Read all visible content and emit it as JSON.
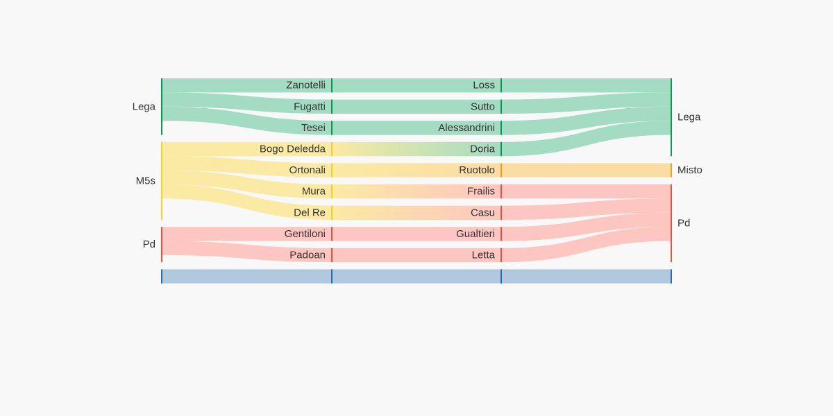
{
  "colors": {
    "lega": "#009e55",
    "m5s": "#f6d21a",
    "pd": "#e8533f",
    "misto": "#f0a50f",
    "other": "#1f6fb5",
    "lega_link": "#a3dcc2",
    "m5s_link": "#fbeaa3",
    "pd_link": "#fdc6c0",
    "misto_link": "#fbdca3",
    "other_link": "#b0c9df",
    "background": "#f8f8f8"
  },
  "diagram": {
    "type": "sankey",
    "columns": [
      {
        "nodes": [
          {
            "id": "c0-lega",
            "label": "Lega",
            "party": "lega"
          },
          {
            "id": "c0-m5s",
            "label": "M5s",
            "party": "m5s"
          },
          {
            "id": "c0-pd",
            "label": "Pd",
            "party": "pd"
          },
          {
            "id": "c0-other",
            "label": "",
            "party": "other"
          }
        ]
      },
      {
        "nodes": [
          {
            "id": "c1-zanotelli",
            "label": "Zanotelli",
            "party": "lega"
          },
          {
            "id": "c1-fugatti",
            "label": "Fugatti",
            "party": "lega"
          },
          {
            "id": "c1-tesei",
            "label": "Tesei",
            "party": "lega"
          },
          {
            "id": "c1-bogo",
            "label": "Bogo Deledda",
            "party": "m5s"
          },
          {
            "id": "c1-ortonali",
            "label": "Ortonali",
            "party": "m5s"
          },
          {
            "id": "c1-mura",
            "label": "Mura",
            "party": "m5s"
          },
          {
            "id": "c1-delre",
            "label": "Del Re",
            "party": "m5s"
          },
          {
            "id": "c1-gentiloni",
            "label": "Gentiloni",
            "party": "pd"
          },
          {
            "id": "c1-padoan",
            "label": "Padoan",
            "party": "pd"
          },
          {
            "id": "c1-other",
            "label": "",
            "party": "other"
          }
        ]
      },
      {
        "nodes": [
          {
            "id": "c2-loss",
            "label": "Loss",
            "party": "lega"
          },
          {
            "id": "c2-sutto",
            "label": "Sutto",
            "party": "lega"
          },
          {
            "id": "c2-alessandrini",
            "label": "Alessandrini",
            "party": "lega"
          },
          {
            "id": "c2-doria",
            "label": "Doria",
            "party": "lega"
          },
          {
            "id": "c2-ruotolo",
            "label": "Ruotolo",
            "party": "misto"
          },
          {
            "id": "c2-frailis",
            "label": "Frailis",
            "party": "pd"
          },
          {
            "id": "c2-casu",
            "label": "Casu",
            "party": "pd"
          },
          {
            "id": "c2-gualtieri",
            "label": "Gualtieri",
            "party": "pd"
          },
          {
            "id": "c2-letta",
            "label": "Letta",
            "party": "pd"
          },
          {
            "id": "c2-other",
            "label": "",
            "party": "other"
          }
        ]
      },
      {
        "nodes": [
          {
            "id": "c3-lega",
            "label": "Lega",
            "party": "lega"
          },
          {
            "id": "c3-misto",
            "label": "Misto",
            "party": "misto"
          },
          {
            "id": "c3-pd",
            "label": "Pd",
            "party": "pd"
          },
          {
            "id": "c3-other",
            "label": "",
            "party": "other"
          }
        ]
      }
    ],
    "links": [
      {
        "source": "c0-lega",
        "target": "c1-zanotelli",
        "value": 1
      },
      {
        "source": "c0-lega",
        "target": "c1-fugatti",
        "value": 1
      },
      {
        "source": "c0-lega",
        "target": "c1-tesei",
        "value": 1
      },
      {
        "source": "c0-m5s",
        "target": "c1-bogo",
        "value": 1
      },
      {
        "source": "c0-m5s",
        "target": "c1-ortonali",
        "value": 1
      },
      {
        "source": "c0-m5s",
        "target": "c1-mura",
        "value": 1
      },
      {
        "source": "c0-m5s",
        "target": "c1-delre",
        "value": 1
      },
      {
        "source": "c0-pd",
        "target": "c1-gentiloni",
        "value": 1
      },
      {
        "source": "c0-pd",
        "target": "c1-padoan",
        "value": 1
      },
      {
        "source": "c0-other",
        "target": "c1-other",
        "value": 1
      },
      {
        "source": "c1-zanotelli",
        "target": "c2-loss",
        "value": 1
      },
      {
        "source": "c1-fugatti",
        "target": "c2-sutto",
        "value": 1
      },
      {
        "source": "c1-tesei",
        "target": "c2-alessandrini",
        "value": 1
      },
      {
        "source": "c1-bogo",
        "target": "c2-doria",
        "value": 1
      },
      {
        "source": "c1-ortonali",
        "target": "c2-ruotolo",
        "value": 1
      },
      {
        "source": "c1-mura",
        "target": "c2-frailis",
        "value": 1
      },
      {
        "source": "c1-delre",
        "target": "c2-casu",
        "value": 1
      },
      {
        "source": "c1-gentiloni",
        "target": "c2-gualtieri",
        "value": 1
      },
      {
        "source": "c1-padoan",
        "target": "c2-letta",
        "value": 1
      },
      {
        "source": "c1-other",
        "target": "c2-other",
        "value": 1
      },
      {
        "source": "c2-loss",
        "target": "c3-lega",
        "value": 1
      },
      {
        "source": "c2-sutto",
        "target": "c3-lega",
        "value": 1
      },
      {
        "source": "c2-alessandrini",
        "target": "c3-lega",
        "value": 1
      },
      {
        "source": "c2-doria",
        "target": "c3-lega",
        "value": 1
      },
      {
        "source": "c2-ruotolo",
        "target": "c3-misto",
        "value": 1
      },
      {
        "source": "c2-frailis",
        "target": "c3-pd",
        "value": 1
      },
      {
        "source": "c2-casu",
        "target": "c3-pd",
        "value": 1
      },
      {
        "source": "c2-gualtieri",
        "target": "c3-pd",
        "value": 1
      },
      {
        "source": "c2-letta",
        "target": "c3-pd",
        "value": 1
      },
      {
        "source": "c2-other",
        "target": "c3-other",
        "value": 1
      }
    ]
  }
}
